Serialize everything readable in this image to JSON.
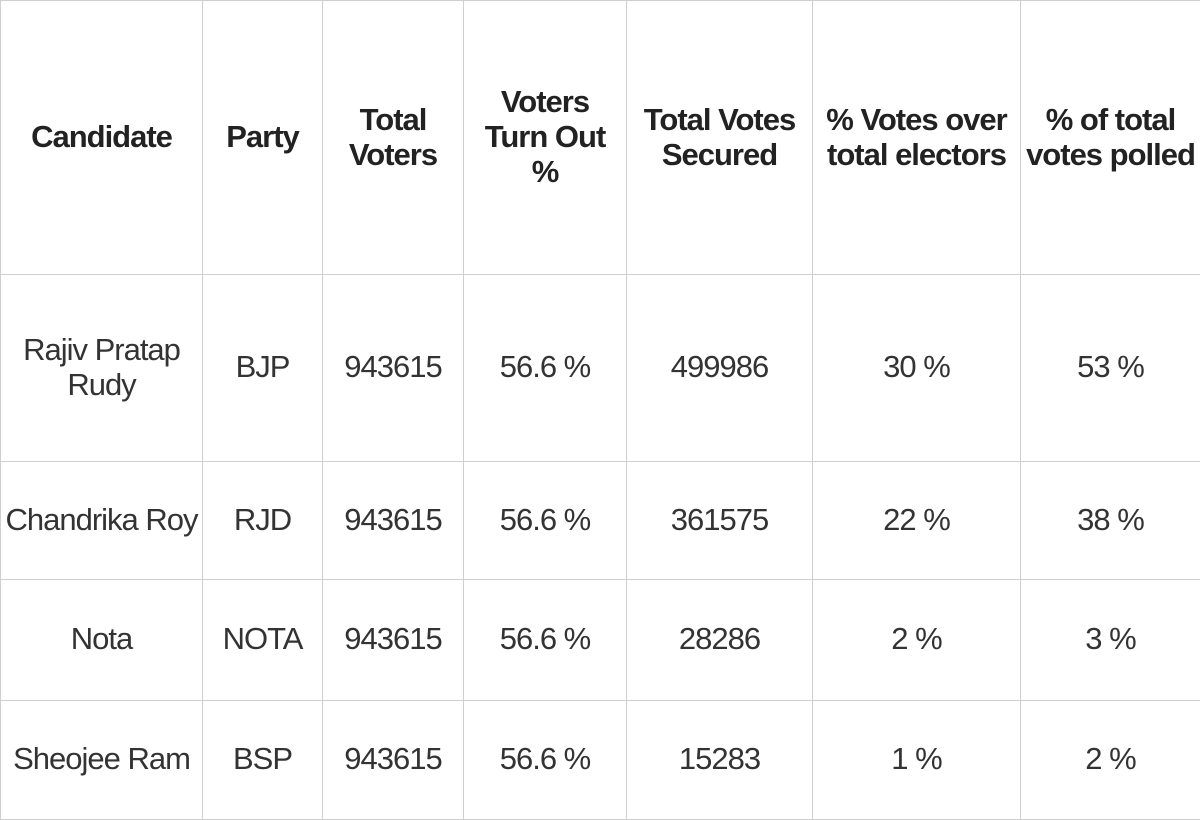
{
  "table": {
    "header": [
      "Candidate",
      "Party",
      "Total Voters",
      "Voters Turn Out %",
      "Total Votes Secured",
      "% Votes over total electors",
      "% of total votes polled"
    ],
    "rows": [
      [
        "Rajiv Pratap Rudy",
        "BJP",
        "943615",
        "56.6 %",
        "499986",
        "30 %",
        "53 %"
      ],
      [
        "Chandrika Roy",
        "RJD",
        "943615",
        "56.6 %",
        "361575",
        "22 %",
        "38 %"
      ],
      [
        "Nota",
        "NOTA",
        "943615",
        "56.6 %",
        "28286",
        "2 %",
        "3 %"
      ],
      [
        "Sheojee Ram",
        "BSP",
        "943615",
        "56.6 %",
        "15283",
        "1 %",
        "2 %"
      ]
    ]
  }
}
